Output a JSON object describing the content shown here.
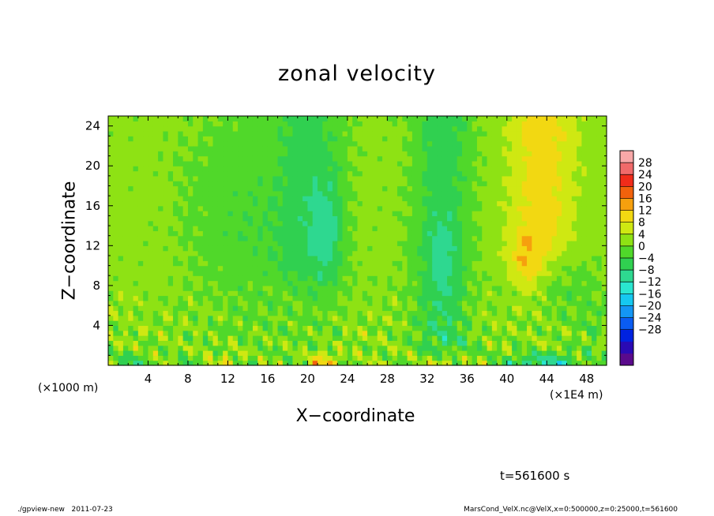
{
  "chart_data": {
    "type": "heatmap",
    "title": "zonal velocity",
    "xlabel": "X−coordinate",
    "ylabel": "Z−coordinate",
    "x_unit_label": "(×1E4 m)",
    "y_unit_label": "(×1000 m)",
    "xlim": [
      0,
      50
    ],
    "ylim": [
      0,
      25
    ],
    "x_ticks": [
      4,
      8,
      12,
      16,
      20,
      24,
      28,
      32,
      36,
      40,
      44,
      48
    ],
    "y_ticks": [
      4,
      8,
      12,
      16,
      20,
      24
    ],
    "colorbar": {
      "levels": [
        -32,
        -28,
        -24,
        -20,
        -16,
        -12,
        -8,
        -4,
        0,
        4,
        8,
        12,
        16,
        20,
        24,
        28,
        32
      ],
      "tick_labels": [
        "28",
        "24",
        "20",
        "16",
        "12",
        "8",
        "4",
        "0",
        "−4",
        "−8",
        "−12",
        "−16",
        "−20",
        "−24",
        "−28"
      ],
      "colors": [
        "#5a0a8c",
        "#2a0ab4",
        "#0022e0",
        "#0a5cf2",
        "#1496f4",
        "#16c8f0",
        "#2ae6d0",
        "#2ed890",
        "#30d050",
        "#50d82a",
        "#8ee214",
        "#cfe812",
        "#f2d812",
        "#f6a00e",
        "#f2620c",
        "#f02c1a",
        "#f06a6a",
        "#f8a8a8"
      ]
    },
    "field_description": [
      {
        "x_range": [
          0,
          18
        ],
        "z_range": [
          0,
          25
        ],
        "value_range": [
          0,
          8
        ]
      },
      {
        "x_range": [
          18,
          24
        ],
        "z_range": [
          8,
          25
        ],
        "value_range": [
          -12,
          -4
        ]
      },
      {
        "x_range": [
          30,
          36
        ],
        "z_range": [
          0,
          25
        ],
        "value_range": [
          -12,
          -4
        ]
      },
      {
        "x_range": [
          40,
          46
        ],
        "z_range": [
          8,
          25
        ],
        "value_range": [
          8,
          20
        ]
      },
      {
        "x_range": [
          40,
          46
        ],
        "z_range": [
          0,
          2
        ],
        "value_range": [
          -20,
          -12
        ]
      },
      {
        "x_range": [
          20,
          24
        ],
        "z_range": [
          0,
          2
        ],
        "value_range": [
          12,
          20
        ]
      },
      {
        "x_range": [
          32,
          36
        ],
        "z_range": [
          0,
          2
        ],
        "value_range": [
          12,
          20
        ]
      }
    ]
  },
  "annotation_time": "t=561600 s",
  "footer_left": "./gpview-new   2011-07-23",
  "footer_right": "MarsCond_VelX.nc@VelX,x=0:500000,z=0:25000,t=561600"
}
